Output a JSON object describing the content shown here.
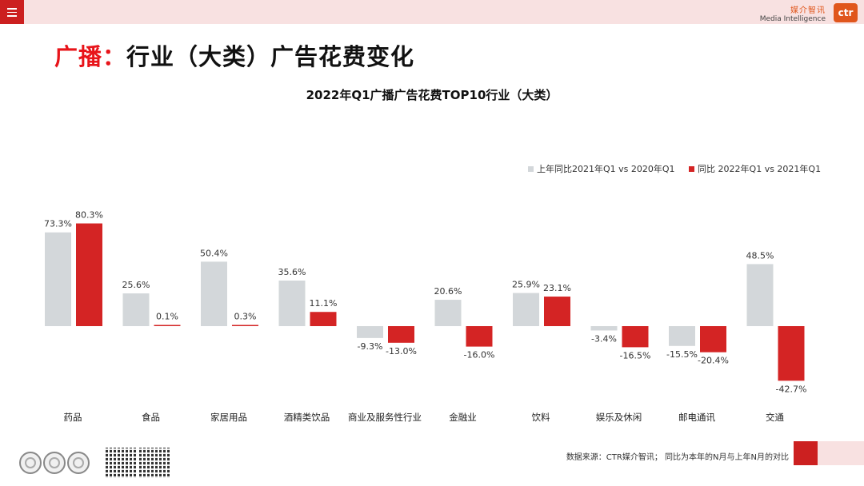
{
  "header": {
    "menu_icon": "hamburger-menu-icon",
    "brand_cn": "媒介智讯",
    "brand_en": "Media Intelligence",
    "brand_logo": "ctr"
  },
  "page": {
    "title_accent": "广播：",
    "title_rest": "行业（大类）广告花费变化"
  },
  "chart_data": {
    "type": "bar",
    "title": "2022年Q1广播广告花费TOP10行业（大类）",
    "categories": [
      "药品",
      "食品",
      "家居用品",
      "酒精类饮品",
      "商业及服务性行业",
      "金融业",
      "饮料",
      "娱乐及休闲",
      "邮电通讯",
      "交通"
    ],
    "series": [
      {
        "name": "上年同比2021年Q1 vs 2020年Q1",
        "color": "#d3d7da",
        "values": [
          73.3,
          25.6,
          50.4,
          35.6,
          -9.3,
          20.6,
          25.9,
          -3.4,
          -15.5,
          48.5
        ],
        "labels": [
          "73.3%",
          "25.6%",
          "50.4%",
          "35.6%",
          "-9.3%",
          "20.6%",
          "25.9%",
          "-3.4%",
          "-15.5%",
          "48.5%"
        ]
      },
      {
        "name": "同比 2022年Q1 vs 2021年Q1",
        "color": "#d42424",
        "values": [
          80.3,
          0.1,
          0.3,
          11.1,
          -13.0,
          -16.0,
          23.1,
          -16.5,
          -20.4,
          -42.7
        ],
        "labels": [
          "80.3%",
          "0.1%",
          "0.3%",
          "11.1%",
          "-13.0%",
          "-16.0%",
          "23.1%",
          "-16.5%",
          "-20.4%",
          "-42.7%"
        ]
      }
    ],
    "unit": "%",
    "legend_position": "top-right",
    "grid": false
  },
  "footer": {
    "source_note": "数据来源：CTR媒介智讯； 同比为本年的N月与上年N月的对比",
    "badge_icons": [
      "sgs-certification-icon",
      "sgs-certification-icon",
      "sgs-certification-icon"
    ],
    "qr_icons": [
      "qr-code-icon",
      "qr-code-icon"
    ]
  }
}
